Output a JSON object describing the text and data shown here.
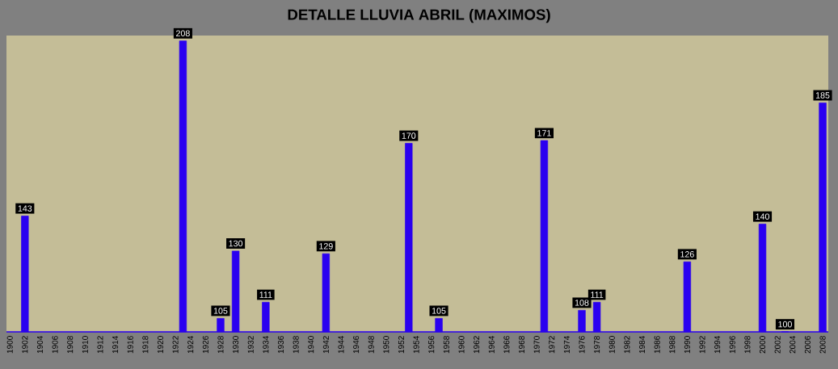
{
  "chart_data": {
    "type": "bar",
    "title": "DETALLE LLUVIA ABRIL (MAXIMOS)",
    "categories": [
      "1900",
      null,
      "1902",
      null,
      "1904",
      null,
      "1906",
      null,
      "1908",
      null,
      "1910",
      null,
      "1912",
      null,
      "1914",
      null,
      "1916",
      null,
      "1918",
      null,
      "1920",
      null,
      "1922",
      null,
      "1924",
      null,
      "1926",
      null,
      "1928",
      null,
      "1930",
      null,
      "1932",
      null,
      "1934",
      null,
      "1936",
      null,
      "1938",
      null,
      "1940",
      null,
      "1942",
      null,
      "1944",
      null,
      "1946",
      null,
      "1948",
      null,
      "1950",
      null,
      "1952",
      null,
      "1954",
      null,
      "1956",
      null,
      "1958",
      null,
      "1960",
      null,
      "1962",
      null,
      "1964",
      null,
      "1966",
      null,
      "1968",
      null,
      "1970",
      null,
      "1972",
      null,
      "1974",
      null,
      "1976",
      null,
      "1978",
      null,
      "1980",
      null,
      "1982",
      null,
      "1984",
      null,
      "1986",
      null,
      "1988",
      null,
      "1990",
      null,
      "1992",
      null,
      "1994",
      null,
      "1996",
      null,
      "1998",
      null,
      "2000",
      null,
      "2002",
      null,
      "2004",
      null,
      "2006",
      null,
      "2008"
    ],
    "values": [
      null,
      null,
      143,
      null,
      null,
      null,
      null,
      null,
      null,
      null,
      null,
      null,
      null,
      null,
      null,
      null,
      null,
      null,
      null,
      null,
      null,
      null,
      null,
      208,
      null,
      null,
      null,
      null,
      105,
      null,
      130,
      null,
      null,
      null,
      111,
      null,
      null,
      null,
      null,
      null,
      null,
      null,
      129,
      null,
      null,
      null,
      null,
      null,
      null,
      null,
      null,
      null,
      null,
      170,
      null,
      null,
      null,
      105,
      null,
      null,
      null,
      null,
      null,
      null,
      null,
      null,
      null,
      null,
      null,
      null,
      null,
      171,
      null,
      null,
      null,
      null,
      108,
      null,
      111,
      null,
      null,
      null,
      null,
      null,
      null,
      null,
      null,
      null,
      null,
      null,
      126,
      null,
      null,
      null,
      null,
      null,
      null,
      null,
      null,
      null,
      140,
      null,
      null,
      100,
      null,
      null,
      null,
      null,
      185
    ],
    "color": "#2a00f0",
    "ylim": [
      100,
      210
    ],
    "data_labels": true
  }
}
